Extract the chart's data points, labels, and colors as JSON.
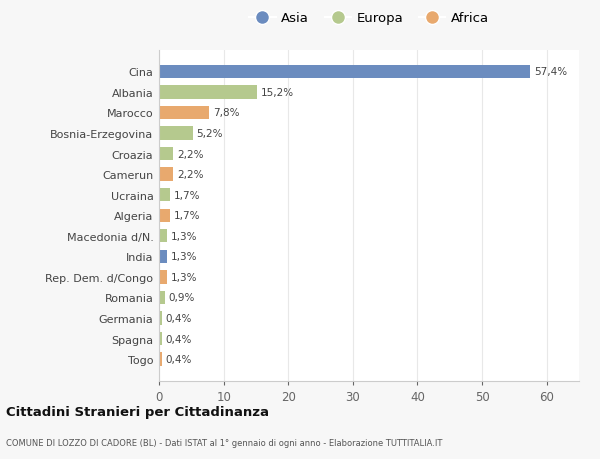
{
  "countries": [
    "Cina",
    "Albania",
    "Marocco",
    "Bosnia-Erzegovina",
    "Croazia",
    "Camerun",
    "Ucraina",
    "Algeria",
    "Macedonia d/N.",
    "India",
    "Rep. Dem. d/Congo",
    "Romania",
    "Germania",
    "Spagna",
    "Togo"
  ],
  "values": [
    57.4,
    15.2,
    7.8,
    5.2,
    2.2,
    2.2,
    1.7,
    1.7,
    1.3,
    1.3,
    1.3,
    0.9,
    0.4,
    0.4,
    0.4
  ],
  "labels": [
    "57,4%",
    "15,2%",
    "7,8%",
    "5,2%",
    "2,2%",
    "2,2%",
    "1,7%",
    "1,7%",
    "1,3%",
    "1,3%",
    "1,3%",
    "0,9%",
    "0,4%",
    "0,4%",
    "0,4%"
  ],
  "continents": [
    "Asia",
    "Europa",
    "Africa",
    "Europa",
    "Europa",
    "Africa",
    "Europa",
    "Africa",
    "Europa",
    "Asia",
    "Africa",
    "Europa",
    "Europa",
    "Europa",
    "Africa"
  ],
  "colors": {
    "Asia": "#6b8cbf",
    "Europa": "#b5c98e",
    "Africa": "#e8a96e"
  },
  "legend_labels": [
    "Asia",
    "Europa",
    "Africa"
  ],
  "legend_colors": [
    "#6b8cbf",
    "#b5c98e",
    "#e8a96e"
  ],
  "title": "Cittadini Stranieri per Cittadinanza",
  "subtitle": "COMUNE DI LOZZO DI CADORE (BL) - Dati ISTAT al 1° gennaio di ogni anno - Elaborazione TUTTITALIA.IT",
  "xlim": [
    0,
    65
  ],
  "xticks": [
    0,
    10,
    20,
    30,
    40,
    50,
    60
  ],
  "bg_color": "#f7f7f7",
  "plot_bg_color": "#ffffff",
  "grid_color": "#e8e8e8",
  "bar_height": 0.65
}
